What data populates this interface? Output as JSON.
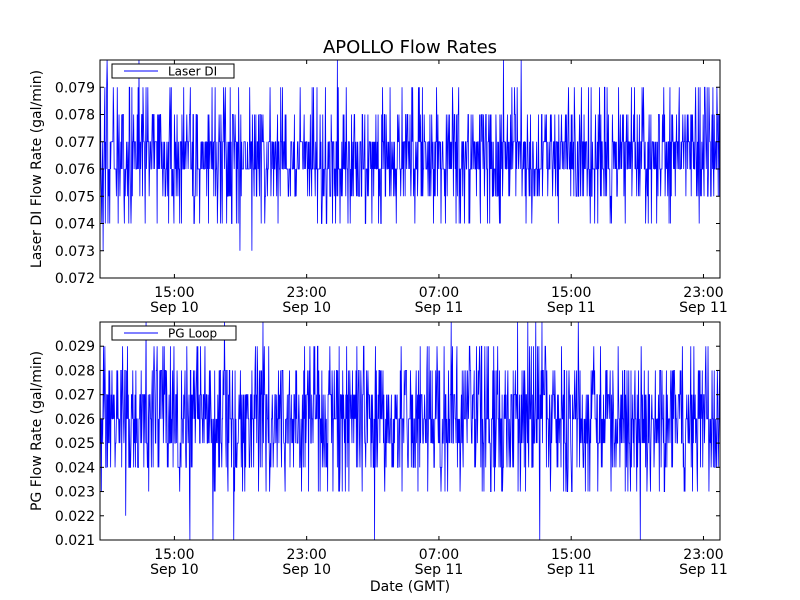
{
  "figure": {
    "title": "APOLLO Flow Rates",
    "xlabel": "Date (GMT)"
  },
  "chart_data": [
    {
      "type": "line",
      "title": "APOLLO Flow Rates",
      "ylabel": "Laser DI Flow Rate (gal/min)",
      "xlabel": "",
      "xlim": [
        "2011-09-10T10:30",
        "2011-09-12T00:00"
      ],
      "ylim": [
        0.072,
        0.08
      ],
      "yticks": [
        0.072,
        0.073,
        0.074,
        0.075,
        0.076,
        0.077,
        0.078,
        0.079
      ],
      "xticks": [
        {
          "time": "2011-09-10T15:00",
          "line1": "15:00",
          "line2": "Sep 10"
        },
        {
          "time": "2011-09-10T23:00",
          "line1": "23:00",
          "line2": "Sep 10"
        },
        {
          "time": "2011-09-11T07:00",
          "line1": "07:00",
          "line2": "Sep 11"
        },
        {
          "time": "2011-09-11T15:00",
          "line1": "15:00",
          "line2": "Sep 11"
        },
        {
          "time": "2011-09-11T23:00",
          "line1": "23:00",
          "line2": "Sep 11"
        }
      ],
      "legend": {
        "location": "top-left",
        "entries": [
          "Laser DI"
        ]
      },
      "series": [
        {
          "name": "Laser DI",
          "color": "#0000ff",
          "baseline": 0.0765,
          "band": [
            0.076,
            0.077
          ],
          "min": 0.072,
          "max": 0.08,
          "resolution": 0.001
        }
      ]
    },
    {
      "type": "line",
      "title": "",
      "ylabel": "PG Flow Rate (gal/min)",
      "xlabel": "Date (GMT)",
      "xlim": [
        "2011-09-10T10:30",
        "2011-09-12T00:00"
      ],
      "ylim": [
        0.021,
        0.03
      ],
      "yticks": [
        0.021,
        0.022,
        0.023,
        0.024,
        0.025,
        0.026,
        0.027,
        0.028,
        0.029
      ],
      "xticks": [
        {
          "time": "2011-09-10T15:00",
          "line1": "15:00",
          "line2": "Sep 10"
        },
        {
          "time": "2011-09-10T23:00",
          "line1": "23:00",
          "line2": "Sep 10"
        },
        {
          "time": "2011-09-11T07:00",
          "line1": "07:00",
          "line2": "Sep 11"
        },
        {
          "time": "2011-09-11T15:00",
          "line1": "15:00",
          "line2": "Sep 11"
        },
        {
          "time": "2011-09-11T23:00",
          "line1": "23:00",
          "line2": "Sep 11"
        }
      ],
      "legend": {
        "location": "top-left",
        "entries": [
          "PG Loop"
        ]
      },
      "series": [
        {
          "name": "PG Loop",
          "color": "#0000ff",
          "baseline": 0.0255,
          "band": [
            0.025,
            0.027
          ],
          "min": 0.021,
          "max": 0.03,
          "resolution": 0.001
        }
      ]
    }
  ]
}
